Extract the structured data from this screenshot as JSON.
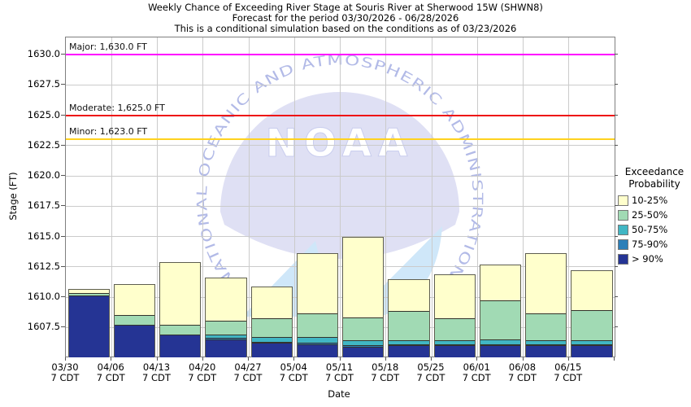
{
  "title": {
    "line1": "Weekly Chance of Exceeding River Stage at Souris River at Sherwood 15W (SHWN8)",
    "line2": "Forecast for the period 03/30/2026 - 06/28/2026",
    "line3": "This is a conditional simulation based on the conditions as of 03/23/2026"
  },
  "legend": {
    "title_line1": "Exceedance",
    "title_line2": "Probability",
    "items": [
      {
        "label": "10-25%",
        "color": "#FFFFCC"
      },
      {
        "label": "25-50%",
        "color": "#A1DAB4"
      },
      {
        "label": "50-75%",
        "color": "#41B6C4"
      },
      {
        "label": "75-90%",
        "color": "#2C7FB8"
      },
      {
        "label": "> 90%",
        "color": "#253494"
      }
    ]
  },
  "watermark": {
    "arc_text": "NATIONAL OCEANIC AND ATMOSPHERIC ADMINISTRATION",
    "center_text": "NOAA"
  },
  "colors": {
    "background": "#FFFFFF",
    "gridline": "#CBCBCB",
    "plot_border": "#7F7F7F",
    "bar_outline": "#5E5E50"
  },
  "chart_data": {
    "type": "bar",
    "subtype": "stacked-exceedance-bands",
    "title": "Weekly Chance of Exceeding River Stage at Souris River at Sherwood 15W (SHWN8)",
    "xlabel": "Date",
    "ylabel": "Stage (FT)",
    "ylim": [
      1605.1,
      1631.42
    ],
    "yticks": [
      1607.5,
      1610.0,
      1612.5,
      1615.0,
      1617.5,
      1620.0,
      1622.5,
      1625.0,
      1627.5,
      1630.0
    ],
    "ytick_labels": [
      "1607.5",
      "1610.0",
      "1612.5",
      "1615.0",
      "1617.5",
      "1620.0",
      "1622.5",
      "1625.0",
      "1627.5",
      "1630.0"
    ],
    "grid": true,
    "legend_position": "right",
    "categories": [
      "03/30",
      "04/06",
      "04/13",
      "04/20",
      "04/27",
      "05/04",
      "05/11",
      "05/18",
      "05/25",
      "06/01",
      "06/08",
      "06/15"
    ],
    "category_sublabel": "7 CDT",
    "baseline_stage": 1605.1,
    "series": [
      {
        "name": "> 90%",
        "color": "#253494",
        "top_stage": [
          1610.2,
          1607.8,
          1607.0,
          1606.6,
          1606.3,
          1606.2,
          1606.0,
          1606.1,
          1606.1,
          1606.1,
          1606.1,
          1606.1
        ]
      },
      {
        "name": "75-90%",
        "color": "#2C7FB8",
        "top_stage": [
          1610.2,
          1607.8,
          1607.0,
          1606.7,
          1606.4,
          1606.3,
          1606.1,
          1606.2,
          1606.2,
          1606.2,
          1606.2,
          1606.2
        ]
      },
      {
        "name": "50-75%",
        "color": "#41B6C4",
        "top_stage": [
          1610.2,
          1607.8,
          1607.0,
          1607.0,
          1606.8,
          1606.8,
          1606.5,
          1606.5,
          1606.5,
          1606.6,
          1606.5,
          1606.5
        ]
      },
      {
        "name": "25-50%",
        "color": "#A1DAB4",
        "top_stage": [
          1610.4,
          1608.6,
          1607.8,
          1608.1,
          1608.3,
          1608.7,
          1608.4,
          1608.9,
          1608.3,
          1609.8,
          1608.7,
          1609.0
        ]
      },
      {
        "name": "10-25%",
        "color": "#FFFFCC",
        "top_stage": [
          1610.7,
          1611.1,
          1612.9,
          1611.6,
          1610.9,
          1613.6,
          1615.0,
          1611.5,
          1611.9,
          1612.7,
          1613.6,
          1612.2
        ]
      }
    ],
    "thresholds": [
      {
        "name": "Major",
        "label": "Major: 1,630.0 FT",
        "stage": 1630.0,
        "color": "#FF00FF"
      },
      {
        "name": "Moderate",
        "label": "Moderate: 1,625.0 FT",
        "stage": 1625.0,
        "color": "#EE1111"
      },
      {
        "name": "Minor",
        "label": "Minor: 1,623.0 FT",
        "stage": 1623.0,
        "color": "#FFD21E"
      }
    ]
  }
}
